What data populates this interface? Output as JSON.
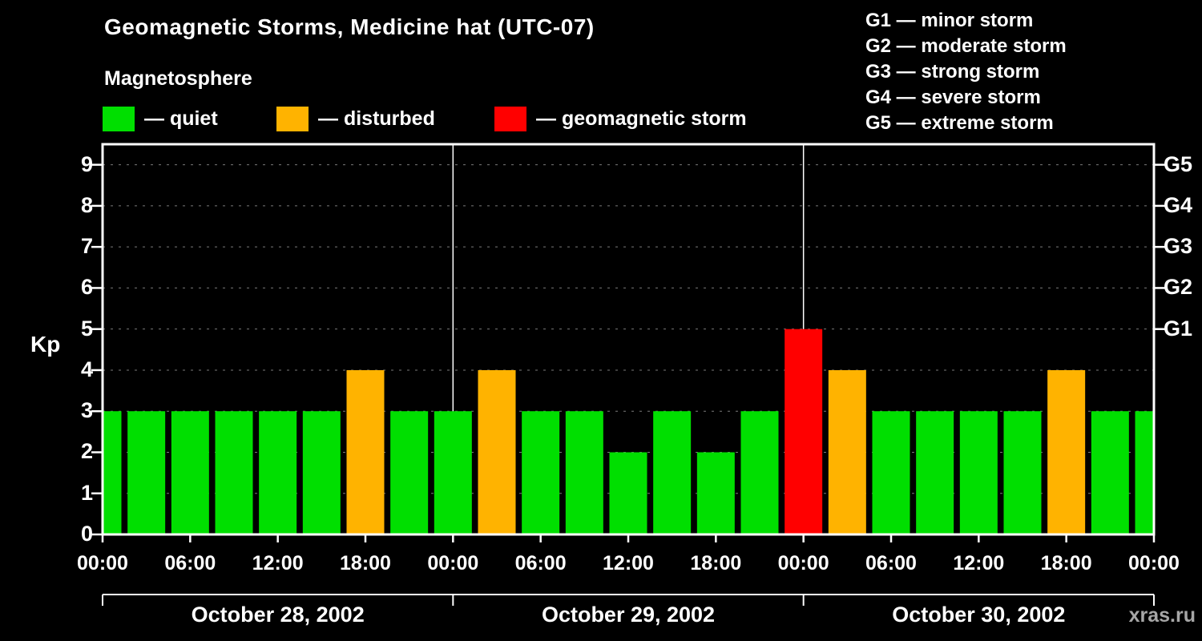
{
  "header": {
    "title": "Geomagnetic Storms, Medicine hat (UTC-07)",
    "subtitle": "Magnetosphere"
  },
  "legend": {
    "items": [
      {
        "name": "quiet",
        "label": "— quiet",
        "color": "#00df00"
      },
      {
        "name": "disturbed",
        "label": "— disturbed",
        "color": "#ffb300"
      },
      {
        "name": "storm",
        "label": "— geomagnetic storm",
        "color": "#ff0000"
      }
    ]
  },
  "g_scale": [
    "G1 — minor storm",
    "G2 — moderate storm",
    "G3 — strong storm",
    "G4 — severe storm",
    "G5 — extreme storm"
  ],
  "watermark": "xras.ru",
  "chart_data": {
    "type": "bar",
    "title": "Geomagnetic Storms, Medicine hat (UTC-07)",
    "subtitle": "Magnetosphere",
    "xlabel": "",
    "ylabel": "Kp",
    "ylim": [
      0,
      9.5
    ],
    "grid": "dashed horizontal gray line at each Kp level",
    "legend_position": "top-left",
    "interval_hours": 3,
    "y_ticks": [
      0,
      1,
      2,
      3,
      4,
      5,
      6,
      7,
      8,
      9
    ],
    "right_axis_ticks": [
      {
        "label": "G1",
        "kp": 5
      },
      {
        "label": "G2",
        "kp": 6
      },
      {
        "label": "G3",
        "kp": 7
      },
      {
        "label": "G4",
        "kp": 8
      },
      {
        "label": "G5",
        "kp": 9
      }
    ],
    "x_tick_labels": [
      "00:00",
      "06:00",
      "12:00",
      "18:00",
      "00:00",
      "06:00",
      "12:00",
      "18:00",
      "00:00",
      "06:00",
      "12:00",
      "18:00",
      "00:00"
    ],
    "days": [
      {
        "label": "October 28, 2002",
        "kp": [
          3,
          3,
          3,
          3,
          3,
          3,
          4,
          3
        ]
      },
      {
        "label": "October 29, 2002",
        "kp": [
          3,
          4,
          3,
          3,
          2,
          3,
          2,
          3
        ]
      },
      {
        "label": "October 30, 2002",
        "kp": [
          5,
          4,
          3,
          3,
          3,
          3,
          4,
          3
        ]
      }
    ],
    "trailing_point_kp": 3,
    "color_rules": {
      "quiet": {
        "max_kp": 3,
        "color": "#00df00"
      },
      "disturbed": {
        "max_kp": 4,
        "color": "#ffb300"
      },
      "storm": {
        "min_kp": 5,
        "color": "#ff0000"
      }
    }
  }
}
